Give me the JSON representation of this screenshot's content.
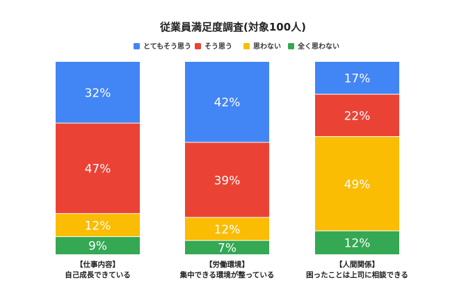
{
  "chart_data": {
    "type": "bar",
    "stacked": true,
    "title": "従業員満足度調査(対象100人)",
    "legend_position": "top",
    "categories": [
      [
        "【仕事内容】",
        "自己成長できている"
      ],
      [
        "【労働環境】",
        "集中できる環境が整っている"
      ],
      [
        "【人間関係】",
        "困ったことは上司に相談できる"
      ]
    ],
    "series": [
      {
        "name": "とてもそう思う",
        "color": "#4285F4",
        "values": [
          32,
          42,
          17
        ]
      },
      {
        "name": "そう思う",
        "color": "#EA4335",
        "values": [
          47,
          39,
          22
        ]
      },
      {
        "name": "思わない",
        "color": "#FBBC04",
        "values": [
          12,
          12,
          49
        ]
      },
      {
        "name": "全く思わない",
        "color": "#34A853",
        "values": [
          9,
          7,
          12
        ]
      }
    ],
    "value_suffix": "%",
    "ylim": [
      0,
      100
    ],
    "grid": false
  }
}
